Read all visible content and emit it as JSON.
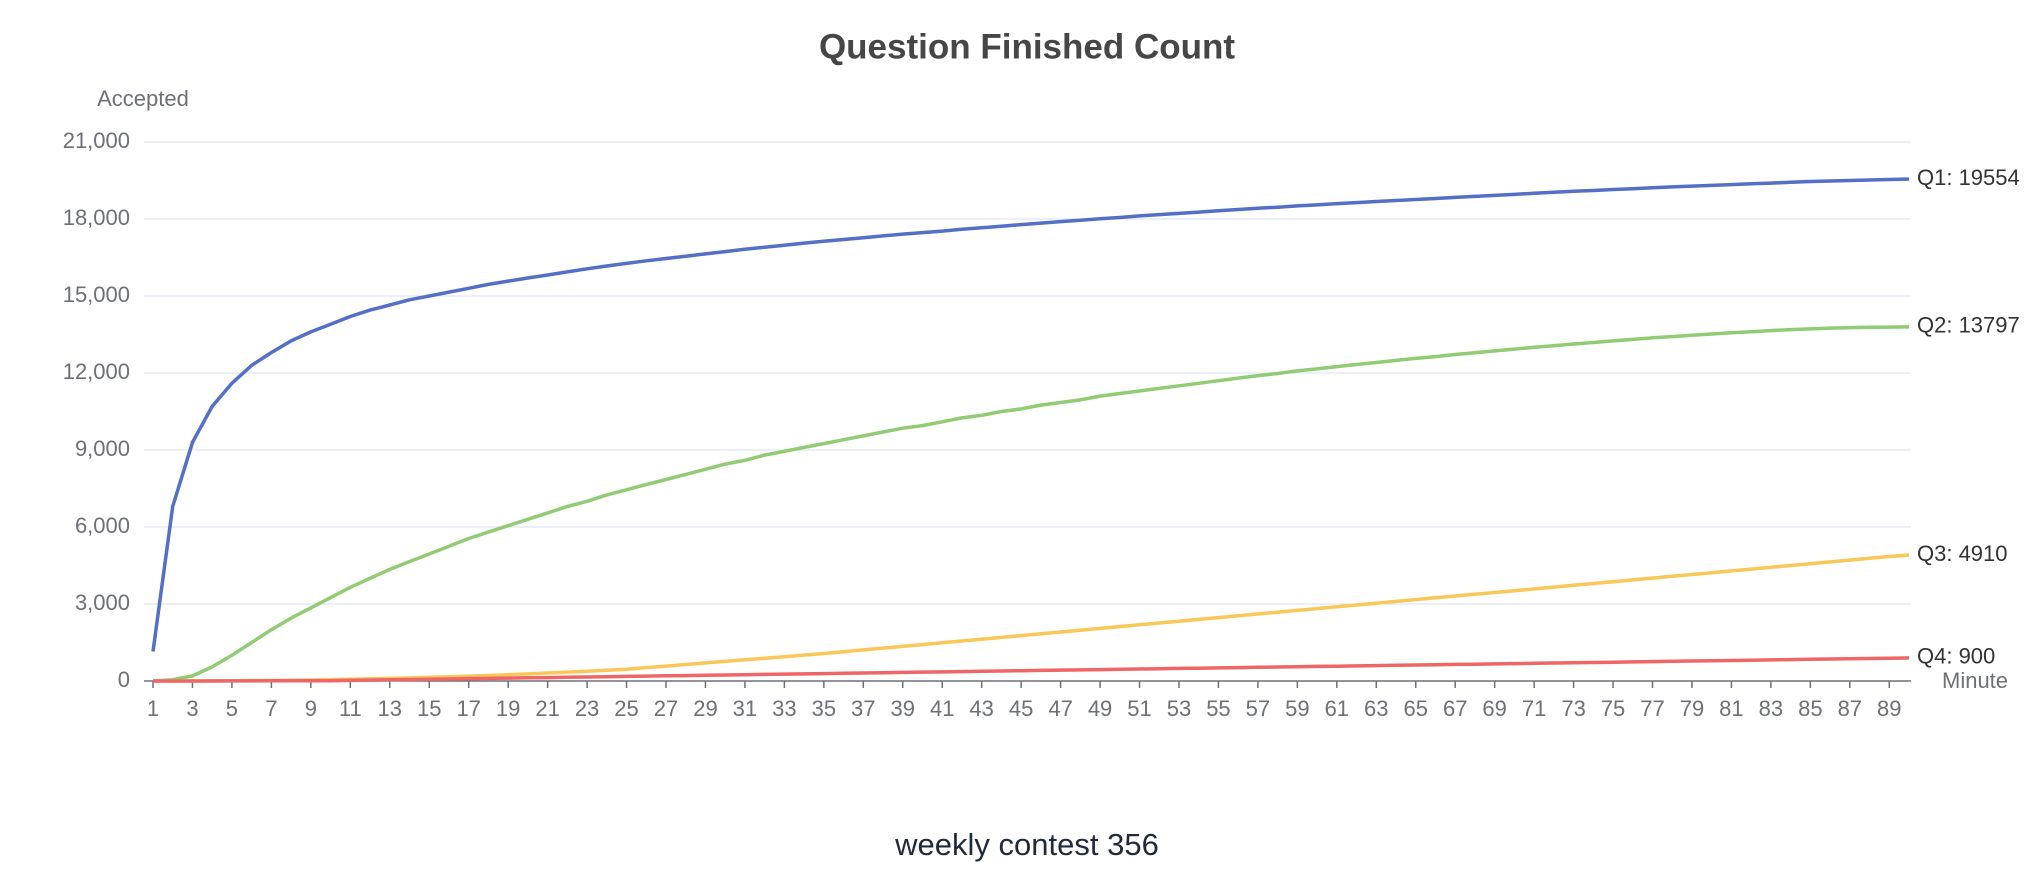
{
  "chart_data": {
    "type": "line",
    "title": "Question Finished Count",
    "subtitle": "weekly contest 356",
    "y_label": "Accepted",
    "x_label": "Minute",
    "grid": true,
    "x": [
      1,
      2,
      3,
      4,
      5,
      6,
      7,
      8,
      9,
      10,
      11,
      12,
      13,
      14,
      15,
      16,
      17,
      18,
      19,
      20,
      21,
      22,
      23,
      24,
      25,
      26,
      27,
      28,
      29,
      30,
      31,
      32,
      33,
      34,
      35,
      36,
      37,
      38,
      39,
      40,
      41,
      42,
      43,
      44,
      45,
      46,
      47,
      48,
      49,
      50,
      51,
      52,
      53,
      54,
      55,
      56,
      57,
      58,
      59,
      60,
      61,
      62,
      63,
      64,
      65,
      66,
      67,
      68,
      69,
      70,
      71,
      72,
      73,
      74,
      75,
      76,
      77,
      78,
      79,
      80,
      81,
      82,
      83,
      84,
      85,
      86,
      87,
      88,
      89,
      90
    ],
    "xlim": [
      1,
      90
    ],
    "xticks": [
      1,
      3,
      5,
      7,
      9,
      11,
      13,
      15,
      17,
      19,
      21,
      23,
      25,
      27,
      29,
      31,
      33,
      35,
      37,
      39,
      41,
      43,
      45,
      47,
      49,
      51,
      53,
      55,
      57,
      59,
      61,
      63,
      65,
      67,
      69,
      71,
      73,
      75,
      77,
      79,
      81,
      83,
      85,
      87,
      89
    ],
    "ylim": [
      0,
      21000
    ],
    "yticks": [
      0,
      {
        "value": 3000,
        "label": "3,000"
      },
      {
        "value": 6000,
        "label": "6,000"
      },
      {
        "value": 9000,
        "label": "9,000"
      },
      {
        "value": 12000,
        "label": "12,000"
      },
      {
        "value": 15000,
        "label": "15,000"
      },
      {
        "value": 18000,
        "label": "18,000"
      },
      {
        "value": 21000,
        "label": "21,000"
      }
    ],
    "series": [
      {
        "name": "Q1",
        "color": "#5470c6",
        "end_label": "Q1: 19554",
        "values": [
          1150,
          6800,
          9300,
          10700,
          11600,
          12300,
          12800,
          13250,
          13600,
          13900,
          14200,
          14450,
          14650,
          14850,
          15000,
          15150,
          15300,
          15450,
          15580,
          15700,
          15820,
          15940,
          16060,
          16170,
          16270,
          16370,
          16460,
          16550,
          16640,
          16730,
          16820,
          16900,
          16980,
          17060,
          17130,
          17200,
          17270,
          17340,
          17410,
          17470,
          17530,
          17600,
          17660,
          17720,
          17780,
          17840,
          17900,
          17950,
          18010,
          18060,
          18120,
          18170,
          18220,
          18270,
          18320,
          18370,
          18420,
          18460,
          18510,
          18550,
          18600,
          18640,
          18680,
          18720,
          18760,
          18800,
          18840,
          18880,
          18920,
          18960,
          19000,
          19040,
          19080,
          19110,
          19150,
          19180,
          19220,
          19250,
          19280,
          19310,
          19340,
          19370,
          19400,
          19430,
          19460,
          19480,
          19500,
          19520,
          19540,
          19554
        ]
      },
      {
        "name": "Q2",
        "color": "#91cc75",
        "end_label": "Q2: 13797",
        "values": [
          0,
          50,
          200,
          550,
          1000,
          1500,
          2000,
          2450,
          2850,
          3250,
          3650,
          4000,
          4350,
          4650,
          4950,
          5250,
          5550,
          5800,
          6050,
          6300,
          6550,
          6800,
          7000,
          7250,
          7450,
          7650,
          7850,
          8050,
          8250,
          8450,
          8600,
          8800,
          8950,
          9100,
          9250,
          9400,
          9550,
          9700,
          9850,
          9950,
          10100,
          10250,
          10350,
          10500,
          10600,
          10750,
          10850,
          10950,
          11100,
          11200,
          11300,
          11400,
          11500,
          11600,
          11700,
          11800,
          11900,
          11980,
          12080,
          12160,
          12250,
          12330,
          12410,
          12490,
          12570,
          12640,
          12720,
          12790,
          12860,
          12930,
          13000,
          13060,
          13130,
          13190,
          13250,
          13310,
          13370,
          13420,
          13470,
          13520,
          13570,
          13610,
          13650,
          13690,
          13720,
          13750,
          13770,
          13780,
          13790,
          13797
        ]
      },
      {
        "name": "Q3",
        "color": "#fac858",
        "end_label": "Q3: 4910",
        "values": [
          0,
          0,
          0,
          5,
          10,
          15,
          20,
          30,
          40,
          55,
          70,
          85,
          100,
          120,
          140,
          165,
          190,
          215,
          245,
          275,
          310,
          345,
          380,
          420,
          460,
          521,
          582,
          643,
          704,
          765,
          826,
          887,
          948,
          1009,
          1070,
          1140,
          1210,
          1280,
          1350,
          1420,
          1490,
          1560,
          1630,
          1700,
          1770,
          1840,
          1910,
          1980,
          2050,
          2120,
          2190,
          2260,
          2330,
          2400,
          2470,
          2540,
          2610,
          2680,
          2750,
          2820,
          2890,
          2960,
          3030,
          3100,
          3170,
          3240,
          3310,
          3380,
          3450,
          3520,
          3590,
          3660,
          3730,
          3800,
          3870,
          3940,
          4010,
          4080,
          4150,
          4220,
          4290,
          4360,
          4430,
          4500,
          4570,
          4640,
          4710,
          4780,
          4850,
          4910
        ]
      },
      {
        "name": "Q4",
        "color": "#ee6666",
        "end_label": "Q4: 900",
        "values": [
          0,
          0,
          0,
          0,
          2,
          4,
          6,
          8,
          10,
          12,
          23,
          34,
          45,
          56,
          68,
          79,
          90,
          101,
          112,
          123,
          134,
          145,
          156,
          167,
          179,
          190,
          201,
          212,
          223,
          234,
          245,
          256,
          267,
          278,
          290,
          301,
          312,
          323,
          334,
          345,
          356,
          367,
          378,
          389,
          401,
          412,
          423,
          434,
          445,
          456,
          467,
          478,
          489,
          500,
          512,
          523,
          534,
          545,
          556,
          567,
          578,
          589,
          600,
          611,
          623,
          634,
          645,
          656,
          667,
          678,
          689,
          700,
          711,
          722,
          734,
          745,
          756,
          767,
          778,
          789,
          800,
          811,
          822,
          833,
          845,
          856,
          867,
          878,
          889,
          900
        ]
      }
    ]
  }
}
